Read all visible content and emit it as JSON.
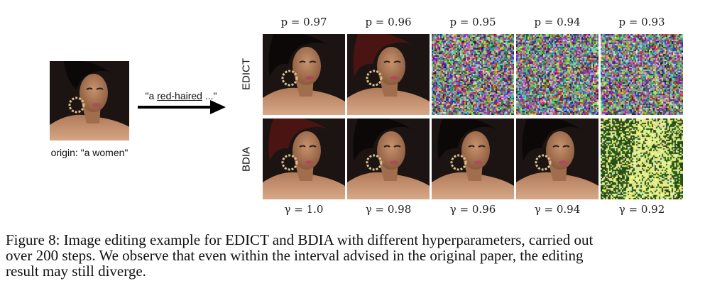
{
  "figure": {
    "origin_label": "origin: \"a women\"",
    "prompt_prefix": "\"a ",
    "prompt_underlined": "red-haired",
    "prompt_suffix": " ...\"",
    "rows": [
      {
        "label": "EDICT",
        "param_labels": [
          "p = 0.97",
          "p = 0.96",
          "p = 0.95",
          "p = 0.94",
          "p = 0.93"
        ],
        "results": [
          "portrait-black-hair",
          "portrait-red-hair",
          "noise",
          "noise",
          "noise"
        ]
      },
      {
        "label": "BDIA",
        "param_labels": [
          "γ = 1.0",
          "γ = 0.98",
          "γ = 0.96",
          "γ = 0.94",
          "γ = 0.92"
        ],
        "results": [
          "portrait-red-hair",
          "portrait-black-hair",
          "portrait-black-hair",
          "portrait-black-hair",
          "green-noise"
        ]
      }
    ]
  },
  "caption": {
    "lines": [
      "Figure 8: Image editing example for EDICT and BDIA with different hyperparameters, carried out",
      "over 200 steps. We observe that even within the interval advised in the original paper, the editing",
      "result may still diverge."
    ]
  }
}
